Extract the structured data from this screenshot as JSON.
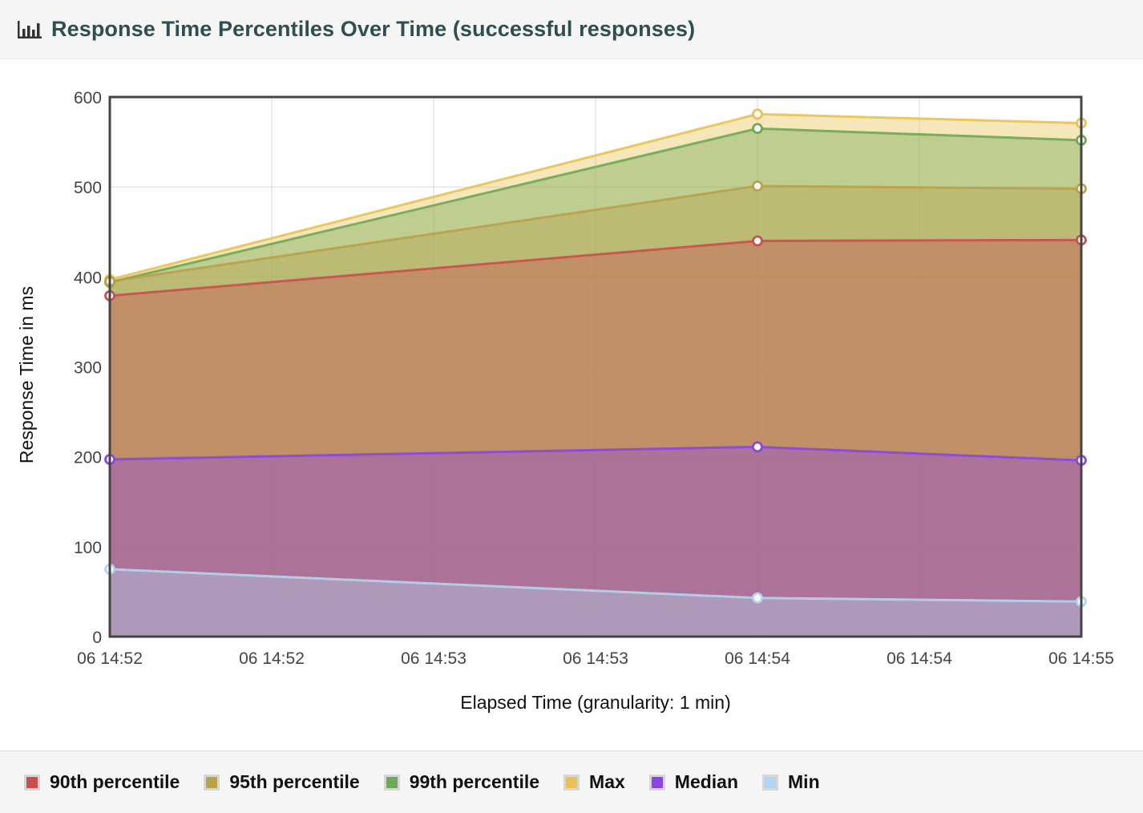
{
  "header": {
    "title": "Response Time Percentiles Over Time (successful responses)",
    "icon": "bar-chart-icon"
  },
  "chart_data": {
    "type": "area",
    "xlabel": "Elapsed Time (granularity: 1 min)",
    "ylabel": "Response Time in ms",
    "ylim": [
      0,
      600
    ],
    "yticks": [
      0,
      100,
      200,
      300,
      400,
      500,
      600
    ],
    "xticks": [
      "06 14:52",
      "06 14:52",
      "06 14:53",
      "06 14:53",
      "06 14:54",
      "06 14:54",
      "06 14:55"
    ],
    "x_minutes": [
      0,
      2,
      3
    ],
    "grid": true,
    "legend_position": "bottom",
    "series": [
      {
        "name": "Min",
        "color": "#b3d4f0",
        "values": [
          75,
          43,
          39
        ]
      },
      {
        "name": "Median",
        "color": "#8b46e0",
        "values": [
          197,
          211,
          196
        ]
      },
      {
        "name": "90th percentile",
        "color": "#c95050",
        "values": [
          379,
          440,
          441
        ]
      },
      {
        "name": "95th percentile",
        "color": "#b9a14a",
        "values": [
          395,
          501,
          498
        ]
      },
      {
        "name": "99th percentile",
        "color": "#6fa856",
        "values": [
          394,
          565,
          552
        ]
      },
      {
        "name": "Max",
        "color": "#e8c252",
        "values": [
          397,
          581,
          571
        ]
      }
    ]
  },
  "legend": {
    "items": [
      {
        "label": "90th percentile",
        "color": "#c95050"
      },
      {
        "label": "95th percentile",
        "color": "#b9a14a"
      },
      {
        "label": "99th percentile",
        "color": "#6fa856"
      },
      {
        "label": "Max",
        "color": "#e8c252"
      },
      {
        "label": "Median",
        "color": "#8b46e0"
      },
      {
        "label": "Min",
        "color": "#b3d4f0"
      }
    ]
  }
}
